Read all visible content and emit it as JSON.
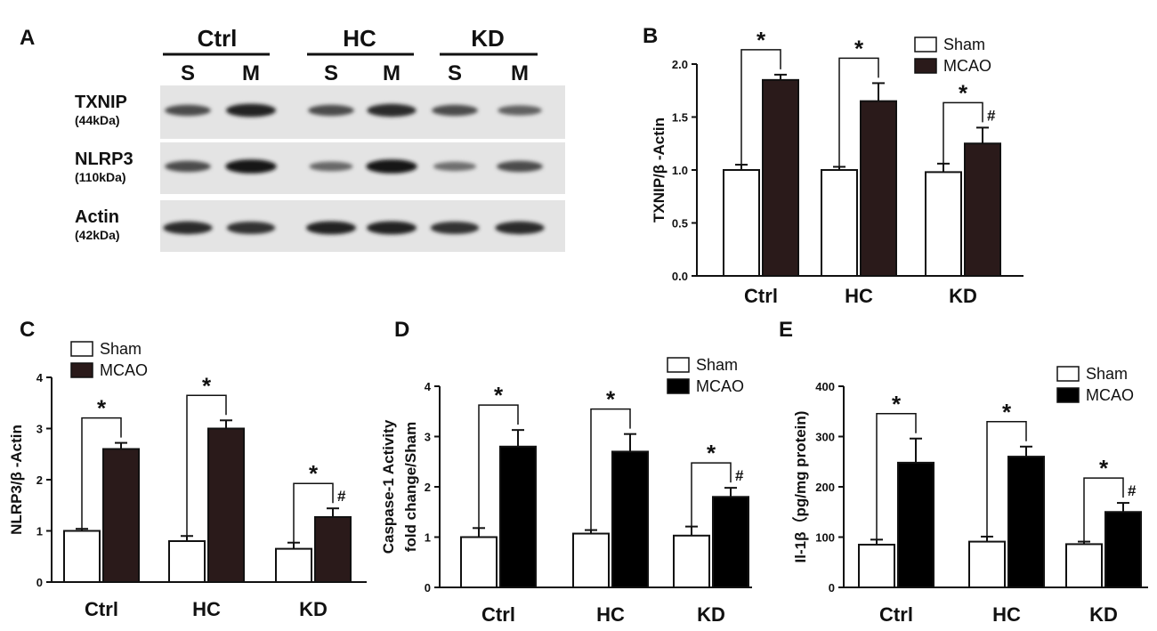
{
  "panel_a": {
    "letter": "A",
    "groups": [
      "Ctrl",
      "HC",
      "KD"
    ],
    "lanes": [
      "S",
      "M",
      "S",
      "M",
      "S",
      "M"
    ],
    "proteins": [
      {
        "name": "TXNIP",
        "kda": "(44kDa)",
        "intensities": [
          0.55,
          0.85,
          0.55,
          0.8,
          0.55,
          0.4
        ]
      },
      {
        "name": "NLRP3",
        "kda": "(110kDa)",
        "intensities": [
          0.55,
          0.95,
          0.35,
          0.95,
          0.3,
          0.55
        ]
      },
      {
        "name": "Actin",
        "kda": "(42kDa)",
        "intensities": [
          0.8,
          0.75,
          0.85,
          0.85,
          0.75,
          0.8
        ]
      }
    ]
  },
  "chart_data": [
    {
      "panel": "B",
      "type": "bar",
      "categories": [
        "Ctrl",
        "HC",
        "KD"
      ],
      "series": [
        {
          "name": "Sham",
          "color": "#ffffff",
          "values": [
            1.0,
            1.0,
            0.98
          ],
          "errors": [
            0.05,
            0.03,
            0.08
          ]
        },
        {
          "name": "MCAO",
          "color": "#2a1a1a",
          "values": [
            1.85,
            1.65,
            1.25
          ],
          "errors": [
            0.05,
            0.17,
            0.15
          ]
        }
      ],
      "ylabel": "TXNIP/β -Actin",
      "ylim": [
        0,
        2.0
      ],
      "yticks": [
        "0.0",
        "0.5",
        "1.0",
        "1.5",
        "2.0"
      ],
      "ytick_values": [
        0,
        0.5,
        1.0,
        1.5,
        2.0
      ],
      "annotations": [
        {
          "category": "Ctrl",
          "text": "*"
        },
        {
          "category": "HC",
          "text": "*"
        },
        {
          "category": "KD",
          "text": "*",
          "hash": "#"
        }
      ],
      "legend": "top-right"
    },
    {
      "panel": "C",
      "type": "bar",
      "categories": [
        "Ctrl",
        "HC",
        "KD"
      ],
      "series": [
        {
          "name": "Sham",
          "color": "#ffffff",
          "values": [
            1.0,
            0.8,
            0.65
          ],
          "errors": [
            0.04,
            0.1,
            0.12
          ]
        },
        {
          "name": "MCAO",
          "color": "#2a1a1a",
          "values": [
            2.6,
            3.0,
            1.27
          ],
          "errors": [
            0.12,
            0.16,
            0.17
          ]
        }
      ],
      "ylabel": "NLRP3/β -Actin",
      "ylim": [
        0,
        4
      ],
      "yticks": [
        "0",
        "1",
        "2",
        "3",
        "4"
      ],
      "ytick_values": [
        0,
        1,
        2,
        3,
        4
      ],
      "annotations": [
        {
          "category": "Ctrl",
          "text": "*"
        },
        {
          "category": "HC",
          "text": "*"
        },
        {
          "category": "KD",
          "text": "*",
          "hash": "#"
        }
      ],
      "legend": "top-left"
    },
    {
      "panel": "D",
      "type": "bar",
      "categories": [
        "Ctrl",
        "HC",
        "KD"
      ],
      "series": [
        {
          "name": "Sham",
          "color": "#ffffff",
          "values": [
            1.0,
            1.07,
            1.03
          ],
          "errors": [
            0.18,
            0.07,
            0.18
          ]
        },
        {
          "name": "MCAO",
          "color": "#000000",
          "values": [
            2.8,
            2.7,
            1.8
          ],
          "errors": [
            0.33,
            0.35,
            0.18
          ]
        }
      ],
      "ylabel": [
        "Caspase-1 Activity",
        "fold change/Sham"
      ],
      "ylim": [
        0,
        4
      ],
      "yticks": [
        "0",
        "1",
        "2",
        "3",
        "4"
      ],
      "ytick_values": [
        0,
        1,
        2,
        3,
        4
      ],
      "annotations": [
        {
          "category": "Ctrl",
          "text": "*"
        },
        {
          "category": "HC",
          "text": "*"
        },
        {
          "category": "KD",
          "text": "*",
          "hash": "#"
        }
      ],
      "legend": "top-right"
    },
    {
      "panel": "E",
      "type": "bar",
      "categories": [
        "Ctrl",
        "HC",
        "KD"
      ],
      "series": [
        {
          "name": "Sham",
          "color": "#ffffff",
          "values": [
            85,
            91,
            86
          ],
          "errors": [
            10,
            10,
            5
          ]
        },
        {
          "name": "MCAO",
          "color": "#000000",
          "values": [
            248,
            260,
            150
          ],
          "errors": [
            48,
            20,
            18
          ]
        }
      ],
      "ylabel": "Il-1β（pg/mg protein)",
      "ylim": [
        0,
        400
      ],
      "yticks": [
        "0",
        "100",
        "200",
        "300",
        "400"
      ],
      "ytick_values": [
        0,
        100,
        200,
        300,
        400
      ],
      "annotations": [
        {
          "category": "Ctrl",
          "text": "*"
        },
        {
          "category": "HC",
          "text": "*"
        },
        {
          "category": "KD",
          "text": "*",
          "hash": "#"
        }
      ],
      "legend": "top-right"
    }
  ]
}
